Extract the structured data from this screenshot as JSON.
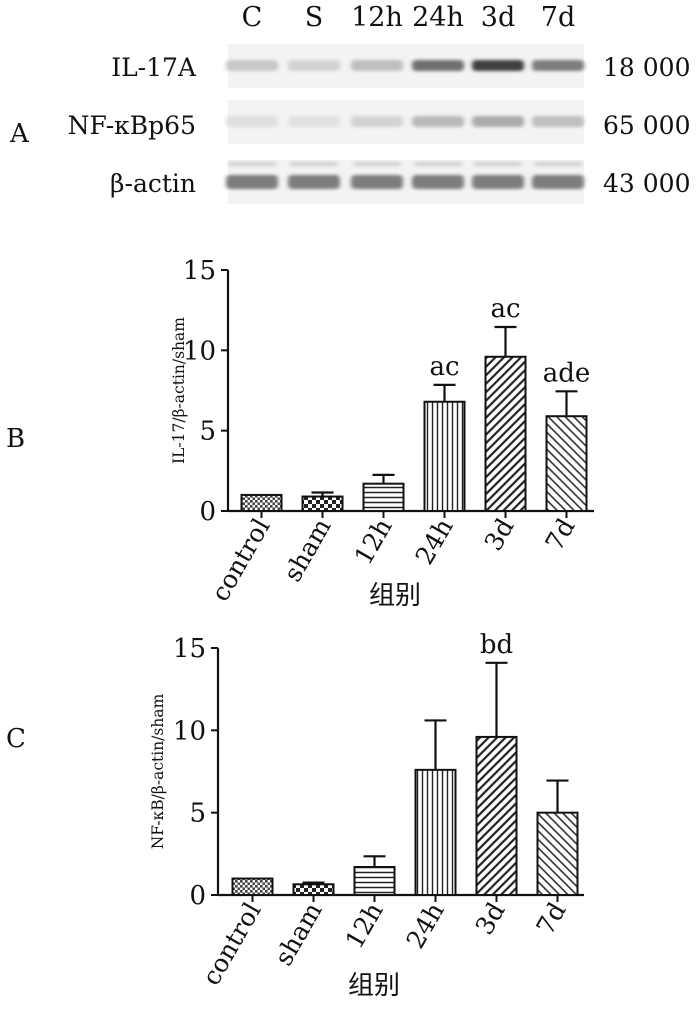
{
  "panel_a": {
    "panel_label": "A",
    "lane_labels": [
      "C",
      "S",
      "12h",
      "24h",
      "3d",
      "7d"
    ],
    "rows": [
      {
        "name": "IL-17A",
        "mw": "18 000",
        "intensity": [
          0.18,
          0.12,
          0.22,
          0.62,
          0.85,
          0.55
        ]
      },
      {
        "name": "NF-κBp65",
        "mw": "65 000",
        "intensity": [
          0.06,
          0.05,
          0.12,
          0.25,
          0.32,
          0.22
        ]
      },
      {
        "name": "β-actin",
        "mw": "43 000",
        "intensity": [
          0.55,
          0.55,
          0.55,
          0.55,
          0.55,
          0.55
        ]
      }
    ]
  },
  "chart_data": [
    {
      "panel_label": "B",
      "type": "bar",
      "categories": [
        "control",
        "sham",
        "12h",
        "24h",
        "3d",
        "7d"
      ],
      "values": [
        1.0,
        0.9,
        1.7,
        6.8,
        9.6,
        5.9
      ],
      "errors": [
        0.0,
        0.25,
        0.55,
        1.05,
        1.85,
        1.55
      ],
      "annotations": [
        "",
        "",
        "",
        "ac",
        "ac",
        "ade"
      ],
      "patterns": [
        "dots",
        "checker",
        "hlines",
        "vlines",
        "diag-left",
        "diag-right"
      ],
      "xlabel": "组别",
      "ylabel": "IL-17/β-actin/sham",
      "ylim": [
        0,
        15
      ],
      "yticks": [
        0,
        5,
        10,
        15
      ]
    },
    {
      "panel_label": "C",
      "type": "bar",
      "categories": [
        "control",
        "sham",
        "12h",
        "24h",
        "3d",
        "7d"
      ],
      "values": [
        1.0,
        0.65,
        1.7,
        7.6,
        9.6,
        5.0
      ],
      "errors": [
        0.0,
        0.1,
        0.65,
        3.0,
        4.5,
        1.95
      ],
      "annotations": [
        "",
        "",
        "",
        "",
        "bd",
        ""
      ],
      "patterns": [
        "dots",
        "checker",
        "hlines",
        "vlines",
        "diag-left",
        "diag-right"
      ],
      "xlabel": "组别",
      "ylabel": "NF-κB/β-actin/sham",
      "ylim": [
        0,
        15
      ],
      "yticks": [
        0,
        5,
        10,
        15
      ]
    }
  ]
}
